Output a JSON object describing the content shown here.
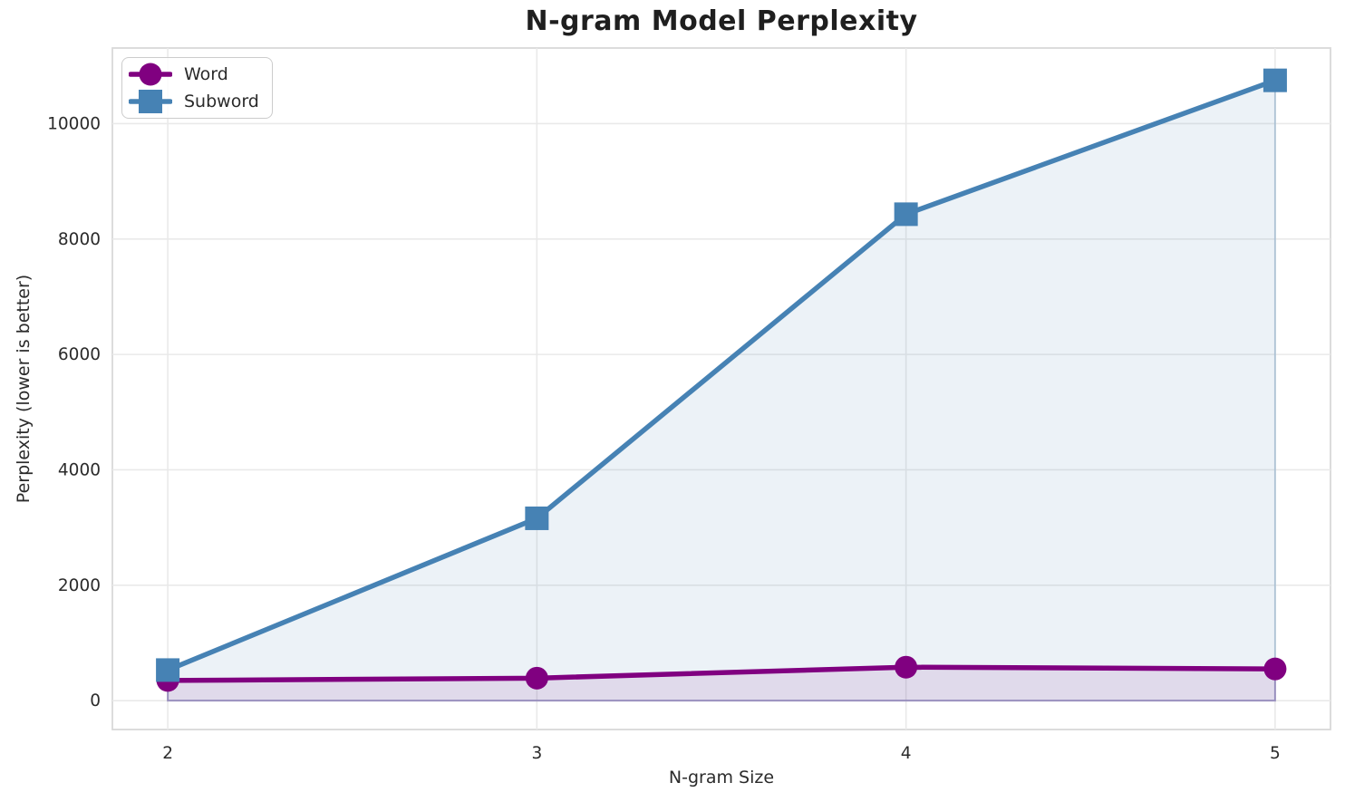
{
  "chart_data": {
    "type": "line",
    "title": "N-gram Model Perplexity",
    "xlabel": "N-gram Size",
    "ylabel": "Perplexity (lower is better)",
    "x": [
      2,
      3,
      4,
      5
    ],
    "series": [
      {
        "name": "Word",
        "marker": "circle",
        "color": "#800080",
        "values": [
          350,
          390,
          580,
          550
        ]
      },
      {
        "name": "Subword",
        "marker": "square",
        "color": "#4682B4",
        "values": [
          530,
          3160,
          8430,
          10750
        ]
      }
    ],
    "fill_alpha": 0.1,
    "xticks": [
      2,
      3,
      4,
      5
    ],
    "yticks": [
      0,
      2000,
      4000,
      6000,
      8000,
      10000
    ],
    "xlim": [
      1.85,
      5.15
    ],
    "ylim": [
      -500,
      11310
    ],
    "grid": true,
    "legend_position": "upper-left"
  },
  "style": {
    "text_color": "#2b2b2b",
    "title_color": "#1f1f1f",
    "grid_color": "#e9e9e9",
    "spine_color": "#d9d9d9",
    "background": "#ffffff"
  }
}
